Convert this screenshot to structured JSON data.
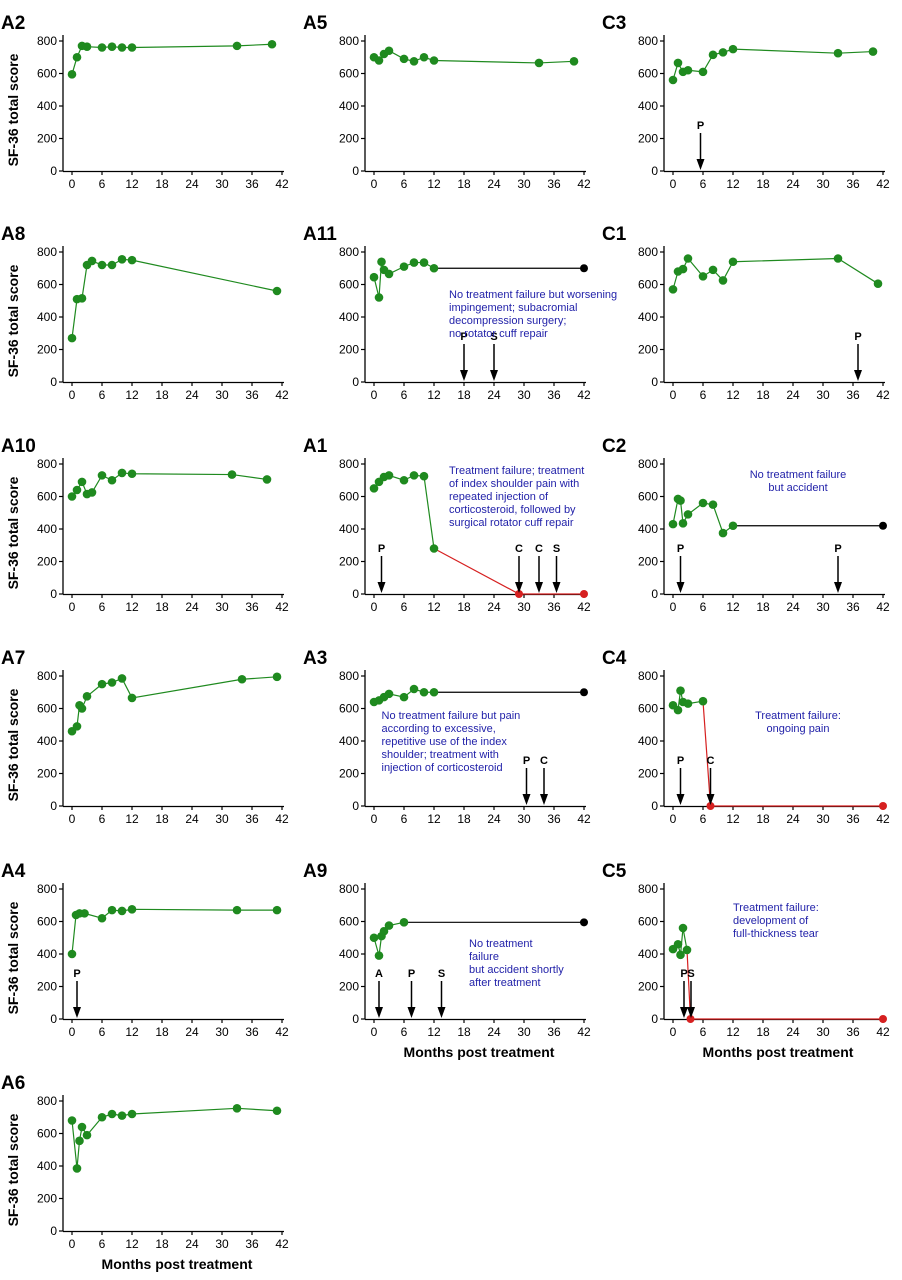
{
  "figure": {
    "ylabel": "SF-36 total score",
    "xlabel": "Months post treatment"
  },
  "chart_data": [
    {
      "type": "line",
      "panel": "A2",
      "ylim": [
        0,
        800
      ],
      "yticks": [
        0,
        200,
        400,
        600,
        800
      ],
      "xlim": [
        0,
        42
      ],
      "xticks": [
        0,
        6,
        12,
        18,
        24,
        30,
        36,
        42
      ],
      "series": [
        {
          "color": "#1f8a1f",
          "x": [
            0,
            1,
            2,
            3,
            6,
            8,
            10,
            12,
            33,
            40
          ],
          "y": [
            595,
            700,
            770,
            765,
            760,
            765,
            760,
            760,
            770,
            780
          ]
        }
      ],
      "tail": null,
      "events": [],
      "annotation": []
    },
    {
      "type": "line",
      "panel": "A5",
      "ylim": [
        0,
        800
      ],
      "yticks": [
        0,
        200,
        400,
        600,
        800
      ],
      "xlim": [
        0,
        42
      ],
      "xticks": [
        0,
        6,
        12,
        18,
        24,
        30,
        36,
        42
      ],
      "series": [
        {
          "color": "#1f8a1f",
          "x": [
            0,
            1,
            2,
            3,
            6,
            8,
            10,
            12,
            33,
            40
          ],
          "y": [
            700,
            680,
            720,
            740,
            690,
            675,
            700,
            680,
            665,
            675
          ]
        }
      ],
      "tail": null,
      "events": [],
      "annotation": []
    },
    {
      "type": "line",
      "panel": "C3",
      "ylim": [
        0,
        800
      ],
      "yticks": [
        0,
        200,
        400,
        600,
        800
      ],
      "xlim": [
        0,
        42
      ],
      "xticks": [
        0,
        6,
        12,
        18,
        24,
        30,
        36,
        42
      ],
      "series": [
        {
          "color": "#1f8a1f",
          "x": [
            0,
            1,
            2,
            3,
            6,
            8,
            10,
            12,
            33,
            40
          ],
          "y": [
            560,
            665,
            610,
            620,
            610,
            715,
            730,
            750,
            725,
            735
          ]
        }
      ],
      "tail": null,
      "events": [
        {
          "label": "P",
          "x": 5.5
        }
      ],
      "annotation": []
    },
    {
      "type": "line",
      "panel": "A8",
      "ylim": [
        0,
        800
      ],
      "yticks": [
        0,
        200,
        400,
        600,
        800
      ],
      "xlim": [
        0,
        42
      ],
      "xticks": [
        0,
        6,
        12,
        18,
        24,
        30,
        36,
        42
      ],
      "series": [
        {
          "color": "#1f8a1f",
          "x": [
            0,
            1,
            2,
            3,
            4,
            6,
            8,
            10,
            12,
            41
          ],
          "y": [
            270,
            510,
            515,
            720,
            745,
            720,
            720,
            755,
            750,
            560
          ]
        }
      ],
      "tail": null,
      "events": [],
      "annotation": []
    },
    {
      "type": "line",
      "panel": "A11",
      "ylim": [
        0,
        800
      ],
      "yticks": [
        0,
        200,
        400,
        600,
        800
      ],
      "xlim": [
        0,
        42
      ],
      "xticks": [
        0,
        6,
        12,
        18,
        24,
        30,
        36,
        42
      ],
      "series": [
        {
          "color": "#1f8a1f",
          "x": [
            0,
            1,
            1.5,
            2,
            3,
            6,
            8,
            10,
            12
          ],
          "y": [
            645,
            520,
            740,
            690,
            665,
            710,
            735,
            735,
            700
          ]
        }
      ],
      "tail": {
        "color": "#000000",
        "x": [
          12,
          42
        ],
        "y": [
          700,
          700
        ]
      },
      "events": [
        {
          "label": "P",
          "x": 18
        },
        {
          "label": "S",
          "x": 24
        }
      ],
      "annotation": [
        "No treatment failure but worsening",
        "impingement; subacromial",
        "decompression surgery;",
        "no rotator cuff repair"
      ]
    },
    {
      "type": "line",
      "panel": "C1",
      "ylim": [
        0,
        800
      ],
      "yticks": [
        0,
        200,
        400,
        600,
        800
      ],
      "xlim": [
        0,
        42
      ],
      "xticks": [
        0,
        6,
        12,
        18,
        24,
        30,
        36,
        42
      ],
      "series": [
        {
          "color": "#1f8a1f",
          "x": [
            0,
            1,
            2,
            3,
            6,
            8,
            10,
            12,
            33,
            41
          ],
          "y": [
            570,
            680,
            695,
            760,
            650,
            690,
            625,
            740,
            760,
            605
          ]
        }
      ],
      "tail": null,
      "events": [
        {
          "label": "P",
          "x": 37
        }
      ],
      "annotation": []
    },
    {
      "type": "line",
      "panel": "A10",
      "ylim": [
        0,
        800
      ],
      "yticks": [
        0,
        200,
        400,
        600,
        800
      ],
      "xlim": [
        0,
        42
      ],
      "xticks": [
        0,
        6,
        12,
        18,
        24,
        30,
        36,
        42
      ],
      "series": [
        {
          "color": "#1f8a1f",
          "x": [
            0,
            1,
            2,
            3,
            4,
            6,
            8,
            10,
            12,
            32,
            39
          ],
          "y": [
            600,
            640,
            690,
            615,
            625,
            730,
            700,
            745,
            740,
            735,
            705
          ]
        }
      ],
      "tail": null,
      "events": [],
      "annotation": []
    },
    {
      "type": "line",
      "panel": "A1",
      "ylim": [
        0,
        800
      ],
      "yticks": [
        0,
        200,
        400,
        600,
        800
      ],
      "xlim": [
        0,
        42
      ],
      "xticks": [
        0,
        6,
        12,
        18,
        24,
        30,
        36,
        42
      ],
      "series": [
        {
          "color": "#1f8a1f",
          "x": [
            0,
            1,
            2,
            3,
            6,
            8,
            10,
            12
          ],
          "y": [
            650,
            690,
            720,
            730,
            700,
            730,
            725,
            280
          ]
        }
      ],
      "tail": {
        "color": "#d62020",
        "x": [
          12,
          29,
          42
        ],
        "y": [
          280,
          0,
          0
        ]
      },
      "events": [
        {
          "label": "P",
          "x": 1.5
        },
        {
          "label": "C",
          "x": 29
        },
        {
          "label": "C",
          "x": 33
        },
        {
          "label": "S",
          "x": 36.5
        }
      ],
      "annotation": [
        "Treatment failure; treatment",
        "of index shoulder pain with",
        "repeated injection of",
        "corticosteroid, followed by",
        "surgical rotator cuff repair"
      ]
    },
    {
      "type": "line",
      "panel": "C2",
      "ylim": [
        0,
        800
      ],
      "yticks": [
        0,
        200,
        400,
        600,
        800
      ],
      "xlim": [
        0,
        42
      ],
      "xticks": [
        0,
        6,
        12,
        18,
        24,
        30,
        36,
        42
      ],
      "series": [
        {
          "color": "#1f8a1f",
          "x": [
            0,
            1,
            1.5,
            2,
            3,
            6,
            8,
            10,
            12
          ],
          "y": [
            430,
            585,
            575,
            435,
            490,
            560,
            550,
            375,
            420
          ]
        }
      ],
      "tail": {
        "color": "#000000",
        "x": [
          12,
          42
        ],
        "y": [
          420,
          420
        ]
      },
      "events": [
        {
          "label": "P",
          "x": 1.5
        },
        {
          "label": "P",
          "x": 33
        }
      ],
      "annotation": [
        "No treatment failure",
        "but accident"
      ]
    },
    {
      "type": "line",
      "panel": "A7",
      "ylim": [
        0,
        800
      ],
      "yticks": [
        0,
        200,
        400,
        600,
        800
      ],
      "xlim": [
        0,
        42
      ],
      "xticks": [
        0,
        6,
        12,
        18,
        24,
        30,
        36,
        42
      ],
      "series": [
        {
          "color": "#1f8a1f",
          "x": [
            0,
            1,
            1.5,
            2,
            3,
            6,
            8,
            10,
            12,
            34,
            41
          ],
          "y": [
            460,
            490,
            620,
            600,
            675,
            750,
            760,
            785,
            665,
            780,
            795
          ]
        }
      ],
      "tail": null,
      "events": [],
      "annotation": []
    },
    {
      "type": "line",
      "panel": "A3",
      "ylim": [
        0,
        800
      ],
      "yticks": [
        0,
        200,
        400,
        600,
        800
      ],
      "xlim": [
        0,
        42
      ],
      "xticks": [
        0,
        6,
        12,
        18,
        24,
        30,
        36,
        42
      ],
      "series": [
        {
          "color": "#1f8a1f",
          "x": [
            0,
            1,
            2,
            3,
            6,
            8,
            10,
            12
          ],
          "y": [
            640,
            650,
            670,
            690,
            670,
            720,
            700,
            700
          ]
        }
      ],
      "tail": {
        "color": "#000000",
        "x": [
          12,
          42
        ],
        "y": [
          700,
          700
        ]
      },
      "events": [
        {
          "label": "P",
          "x": 30.5
        },
        {
          "label": "C",
          "x": 34
        }
      ],
      "annotation": [
        "No treatment failure but pain",
        "according to excessive,",
        "repetitive use of the index",
        "shoulder; treatment with",
        "injection of corticosteroid"
      ]
    },
    {
      "type": "line",
      "panel": "C4",
      "ylim": [
        0,
        800
      ],
      "yticks": [
        0,
        200,
        400,
        600,
        800
      ],
      "xlim": [
        0,
        42
      ],
      "xticks": [
        0,
        6,
        12,
        18,
        24,
        30,
        36,
        42
      ],
      "series": [
        {
          "color": "#1f8a1f",
          "x": [
            0,
            1,
            1.5,
            2,
            3,
            6
          ],
          "y": [
            620,
            590,
            710,
            640,
            630,
            645
          ]
        }
      ],
      "tail": {
        "color": "#d62020",
        "x": [
          6,
          7.5,
          42
        ],
        "y": [
          645,
          0,
          0
        ]
      },
      "events": [
        {
          "label": "P",
          "x": 1.5
        },
        {
          "label": "C",
          "x": 7.5
        }
      ],
      "annotation": [
        "Treatment failure:",
        "ongoing pain"
      ]
    },
    {
      "type": "line",
      "panel": "A4",
      "ylim": [
        0,
        800
      ],
      "yticks": [
        0,
        200,
        400,
        600,
        800
      ],
      "xlim": [
        0,
        42
      ],
      "xticks": [
        0,
        6,
        12,
        18,
        24,
        30,
        36,
        42
      ],
      "series": [
        {
          "color": "#1f8a1f",
          "x": [
            0,
            0.8,
            1.5,
            2.5,
            6,
            8,
            10,
            12,
            33,
            41
          ],
          "y": [
            400,
            640,
            650,
            650,
            620,
            670,
            665,
            675,
            670,
            670
          ]
        }
      ],
      "tail": null,
      "events": [
        {
          "label": "P",
          "x": 1
        }
      ],
      "annotation": []
    },
    {
      "type": "line",
      "panel": "A9",
      "ylim": [
        0,
        800
      ],
      "yticks": [
        0,
        200,
        400,
        600,
        800
      ],
      "xlim": [
        0,
        42
      ],
      "xticks": [
        0,
        6,
        12,
        18,
        24,
        30,
        36,
        42
      ],
      "series": [
        {
          "color": "#1f8a1f",
          "x": [
            0,
            1,
            1.5,
            2,
            3,
            6
          ],
          "y": [
            500,
            390,
            510,
            540,
            575,
            595
          ]
        }
      ],
      "tail": {
        "color": "#000000",
        "x": [
          6,
          42
        ],
        "y": [
          595,
          595
        ]
      },
      "events": [
        {
          "label": "A",
          "x": 1
        },
        {
          "label": "P",
          "x": 7.5
        },
        {
          "label": "S",
          "x": 13.5
        }
      ],
      "annotation": [
        "No treatment",
        "failure",
        "but accident shortly",
        "after treatment"
      ]
    },
    {
      "type": "line",
      "panel": "C5",
      "ylim": [
        0,
        800
      ],
      "yticks": [
        0,
        200,
        400,
        600,
        800
      ],
      "xlim": [
        0,
        42
      ],
      "xticks": [
        0,
        6,
        12,
        18,
        24,
        30,
        36,
        42
      ],
      "series": [
        {
          "color": "#1f8a1f",
          "x": [
            0,
            1,
            1.5,
            2,
            2.8
          ],
          "y": [
            430,
            460,
            395,
            560,
            425
          ]
        }
      ],
      "tail": {
        "color": "#d62020",
        "x": [
          2.8,
          3.5,
          42
        ],
        "y": [
          425,
          0,
          0
        ]
      },
      "events": [
        {
          "label": "P",
          "x": 2.2
        },
        {
          "label": "S",
          "x": 3.6
        }
      ],
      "annotation": [
        "Treatment failure:",
        "development of",
        "full-thickness tear"
      ]
    },
    {
      "type": "line",
      "panel": "A6",
      "ylim": [
        0,
        800
      ],
      "yticks": [
        0,
        200,
        400,
        600,
        800
      ],
      "xlim": [
        0,
        42
      ],
      "xticks": [
        0,
        6,
        12,
        18,
        24,
        30,
        36,
        42
      ],
      "series": [
        {
          "color": "#1f8a1f",
          "x": [
            0,
            1,
            1.5,
            2,
            3,
            6,
            8,
            10,
            12,
            33,
            41
          ],
          "y": [
            680,
            385,
            555,
            640,
            590,
            700,
            720,
            710,
            720,
            755,
            740
          ]
        }
      ],
      "tail": null,
      "events": [],
      "annotation": []
    }
  ]
}
